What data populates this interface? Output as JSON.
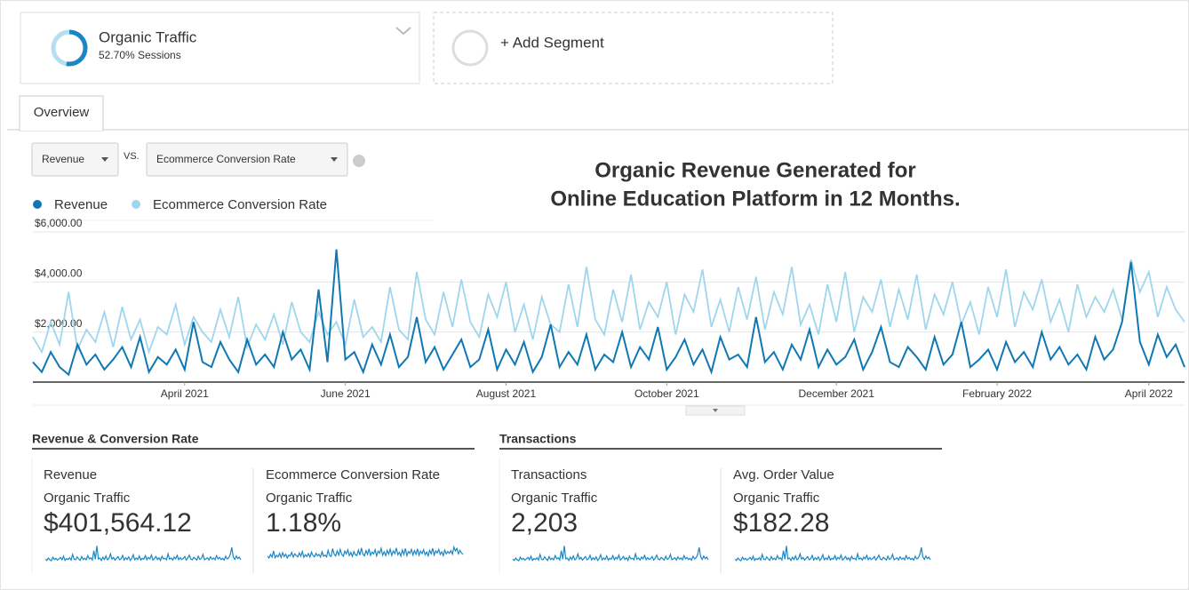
{
  "segments": [
    {
      "name": "Organic Traffic",
      "share": 52.7,
      "share_label": "52.70% Sessions"
    },
    {
      "name": "+ Add Segment"
    }
  ],
  "tabs": [
    "Overview"
  ],
  "controls": {
    "metric": "Revenue",
    "vs": "VS.",
    "compare": "Ecommerce Conversion Rate"
  },
  "chart_data": {
    "type": "line",
    "annotation_lines": [
      "Organic Revenue Generated for",
      "Online Education Platform in 12 Months."
    ],
    "categories": [
      null,
      null,
      null,
      null,
      null,
      null,
      null,
      null,
      null,
      null,
      null,
      null,
      null,
      null,
      null,
      null,
      null,
      "April 2021",
      null,
      null,
      null,
      null,
      null,
      null,
      null,
      null,
      null,
      null,
      null,
      null,
      null,
      null,
      null,
      null,
      null,
      "June 2021",
      null,
      null,
      null,
      null,
      null,
      null,
      null,
      null,
      null,
      null,
      null,
      null,
      null,
      null,
      null,
      null,
      null,
      "August 2021",
      null,
      null,
      null,
      null,
      null,
      null,
      null,
      null,
      null,
      null,
      null,
      null,
      null,
      null,
      null,
      null,
      null,
      "October 2021",
      null,
      null,
      null,
      null,
      null,
      null,
      null,
      null,
      null,
      null,
      null,
      null,
      null,
      null,
      null,
      null,
      null,
      null,
      "December 2021",
      null,
      null,
      null,
      null,
      null,
      null,
      null,
      null,
      null,
      null,
      null,
      null,
      null,
      null,
      null,
      null,
      null,
      "February 2022",
      null,
      null,
      null,
      null,
      null,
      null,
      null,
      null,
      null,
      null,
      null,
      null,
      null,
      null,
      null,
      null,
      "April 2022",
      null,
      null,
      null,
      null
    ],
    "series": [
      {
        "name": "Revenue",
        "color": "#0f78b2",
        "values": [
          800,
          400,
          1200,
          600,
          300,
          1500,
          700,
          1100,
          500,
          900,
          1400,
          600,
          1800,
          400,
          1000,
          700,
          1300,
          500,
          2400,
          800,
          600,
          1600,
          900,
          400,
          1700,
          700,
          1100,
          600,
          2000,
          900,
          1300,
          500,
          3700,
          800,
          5300,
          900,
          1200,
          400,
          1500,
          700,
          1900,
          600,
          1000,
          2600,
          800,
          1400,
          500,
          1100,
          1700,
          600,
          900,
          2100,
          500,
          1300,
          700,
          1600,
          400,
          1000,
          2300,
          600,
          1200,
          700,
          1900,
          500,
          1100,
          800,
          2000,
          600,
          1400,
          900,
          2200,
          500,
          1000,
          1700,
          700,
          1300,
          400,
          1800,
          900,
          1100,
          600,
          2600,
          800,
          1200,
          500,
          1500,
          900,
          2100,
          600,
          1300,
          700,
          1000,
          1700,
          500,
          1200,
          2200,
          800,
          600,
          1400,
          1000,
          500,
          1800,
          700,
          1100,
          2400,
          600,
          900,
          1300,
          500,
          1600,
          800,
          1200,
          600,
          2000,
          900,
          1400,
          700,
          1100,
          500,
          1800,
          900,
          1300,
          2400,
          4800,
          1600,
          700,
          1900,
          1000,
          1500,
          600
        ]
      },
      {
        "name": "Ecommerce Conversion Rate",
        "color": "#9fd6ee",
        "axis": "y2",
        "values": [
          1.8,
          1.2,
          2.4,
          1.5,
          3.6,
          1.3,
          2.1,
          1.6,
          2.8,
          1.4,
          3.0,
          1.7,
          2.5,
          1.2,
          2.2,
          1.9,
          3.1,
          1.5,
          2.6,
          2.0,
          1.6,
          2.9,
          1.8,
          3.4,
          1.4,
          2.3,
          1.7,
          2.7,
          1.5,
          3.2,
          2.0,
          1.6,
          2.8,
          1.9,
          2.4,
          1.5,
          3.3,
          1.8,
          2.2,
          1.6,
          3.8,
          2.1,
          1.7,
          4.4,
          2.5,
          1.9,
          3.6,
          2.2,
          4.1,
          2.4,
          1.8,
          3.5,
          2.6,
          4.0,
          2.0,
          3.1,
          1.7,
          3.4,
          2.3,
          2.0,
          3.9,
          2.2,
          4.6,
          2.5,
          1.9,
          3.7,
          2.4,
          4.3,
          2.1,
          3.2,
          2.6,
          4.0,
          1.9,
          3.5,
          2.8,
          4.5,
          2.2,
          3.3,
          2.0,
          3.8,
          2.5,
          4.2,
          2.1,
          3.6,
          2.7,
          4.6,
          2.3,
          3.1,
          1.9,
          3.9,
          2.4,
          4.4,
          2.0,
          3.4,
          2.8,
          4.1,
          2.2,
          3.7,
          2.5,
          4.3,
          2.1,
          3.5,
          2.7,
          4.0,
          2.3,
          3.2,
          1.9,
          3.8,
          2.6,
          4.5,
          2.2,
          3.6,
          2.9,
          4.1,
          2.4,
          3.3,
          2.0,
          3.9,
          2.6,
          3.4,
          2.8,
          3.7,
          2.5,
          4.9,
          3.6,
          4.4,
          2.6,
          3.8,
          2.9,
          2.4
        ]
      }
    ],
    "ylim": [
      0,
      6000
    ],
    "yticks": [
      {
        "value": 2000,
        "label": "$2,000.00"
      },
      {
        "value": 4000,
        "label": "$4,000.00"
      },
      {
        "value": 6000,
        "label": "$6,000.00"
      }
    ],
    "y2lim": [
      0,
      6
    ],
    "grid": true,
    "legend": "top-left"
  },
  "scorecards": [
    {
      "title": "Revenue & Conversion Rate",
      "cards": [
        {
          "metric": "Revenue",
          "segment": "Organic Traffic",
          "value": "$401,564.12"
        },
        {
          "metric": "Ecommerce Conversion Rate",
          "segment": "Organic Traffic",
          "value": "1.18%"
        }
      ]
    },
    {
      "title": "Transactions",
      "cards": [
        {
          "metric": "Transactions",
          "segment": "Organic Traffic",
          "value": "2,203"
        },
        {
          "metric": "Avg. Order Value",
          "segment": "Organic Traffic",
          "value": "$182.28"
        }
      ]
    }
  ]
}
